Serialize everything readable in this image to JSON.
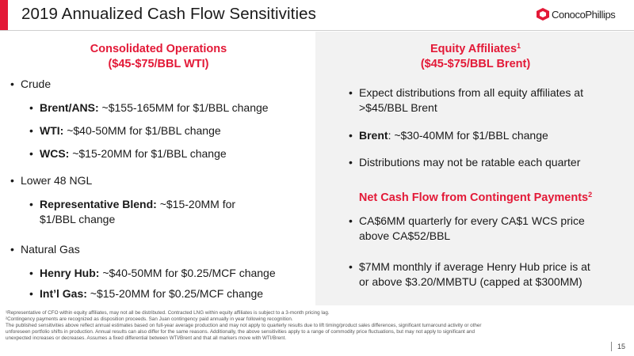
{
  "header": {
    "title": "2019 Annualized Cash Flow Sensitivities",
    "logo_text": "ConocoPhillips"
  },
  "left": {
    "heading_line1": "Consolidated Operations",
    "heading_line2": "($45-$75/BBL WTI)",
    "crude": "Crude",
    "brent_label": "Brent/ANS:",
    "brent_text": " ~$155-165MM for $1/BBL change",
    "wti_label": "WTI:",
    "wti_text": " ~$40-50MM for $1/BBL change",
    "wcs_label": "WCS:",
    "wcs_text": " ~$15-20MM for $1/BBL change",
    "ngl": "Lower 48 NGL",
    "rep_label": "Representative Blend:",
    "rep_text_line1": " ~$15-20MM for",
    "rep_text_line2": "$1/BBL change",
    "gas": "Natural Gas",
    "hh_label": "Henry Hub:",
    "hh_text": " ~$40-50MM for $0.25/MCF change",
    "intl_label": "Int’l Gas:",
    "intl_text": " ~$15-20MM for $0.25/MCF change"
  },
  "right": {
    "heading_line1": "Equity Affiliates",
    "heading_sup": "1",
    "heading_line2": "($45-$75/BBL Brent)",
    "expect_line1": "Expect distributions from all equity affiliates at",
    "expect_line2": ">$45/BBL Brent",
    "brent_label": "Brent",
    "brent_text": ": ~$30-40MM for $1/BBL change",
    "ratable": "Distributions may not be ratable each quarter",
    "contingent_heading": "Net Cash Flow from Contingent Payments",
    "contingent_sup": "2",
    "ca_line1": "CA$6MM quarterly for every CA$1 WCS price",
    "ca_line2": "above CA$52/BBL",
    "hh_line1": "$7MM monthly if average Henry Hub price is at",
    "hh_line2": "or above $3.20/MMBTU (capped at $300MM)"
  },
  "footnotes": [
    "¹Representative of CFO within equity affiliates, may not all be distributed. Contracted LNG within equity affiliates is subject to a 3-month pricing lag.",
    "²Contingency payments are recognized as disposition proceeds. San Juan contingency paid annually in year following recognition.",
    "The published sensitivities above reflect annual estimates based on full-year average production and may not apply to quarterly results due to lift timing/product sales differences, significant turnaround activity or other",
    "unforeseen portfolio shifts in production. Annual results can also differ for the same reasons. Additionally, the above sensitivities apply to a range of commodity price fluctuations, but may not apply to significant and",
    "unexpected increases or decreases. Assumes a fixed differential between WTI/Brent and that all markers move with WTI/Brent."
  ],
  "page_number": "15",
  "colors": {
    "accent_red": "#e31937",
    "panel_gray": "#f2f2f2"
  }
}
